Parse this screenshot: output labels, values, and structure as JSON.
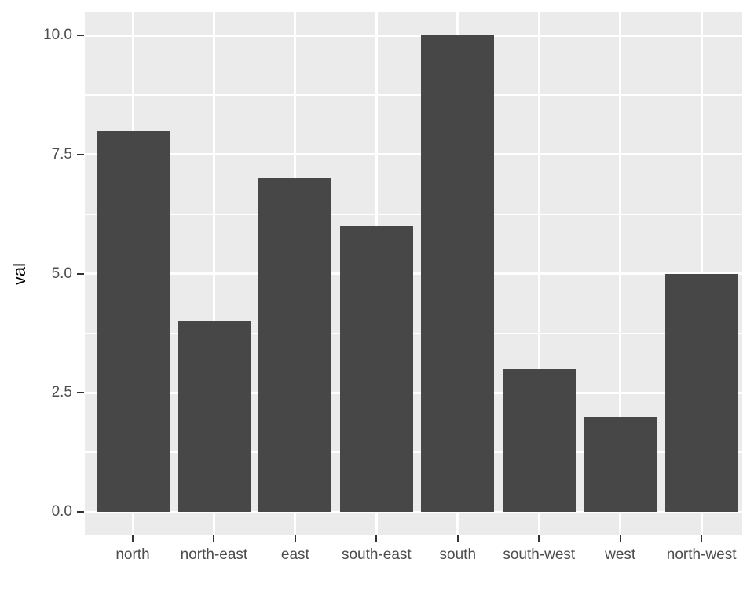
{
  "chart_data": {
    "type": "bar",
    "categories": [
      "north",
      "north-east",
      "east",
      "south-east",
      "south",
      "south-west",
      "west",
      "north-west"
    ],
    "values": [
      8,
      4,
      7,
      6,
      10,
      3,
      2,
      5
    ],
    "title": "",
    "xlabel": "",
    "ylabel": "val",
    "ylim": [
      0,
      10
    ],
    "yticks": [
      0,
      2.5,
      5,
      7.5,
      10
    ],
    "ytick_labels": [
      "0.0",
      "2.5",
      "5.0",
      "7.5",
      "10.0"
    ],
    "yminor": [
      1.25,
      3.75,
      6.25,
      8.75
    ],
    "grid": "on",
    "legend": "none",
    "colors": {
      "bar_fill": "#474747",
      "panel_background": "#EBEBEB",
      "gridline": "#FFFFFF",
      "axis_text": "#4D4D4D",
      "axis_title": "#000000",
      "tick_mark": "#333333",
      "page_background": "#FFFFFF"
    }
  }
}
